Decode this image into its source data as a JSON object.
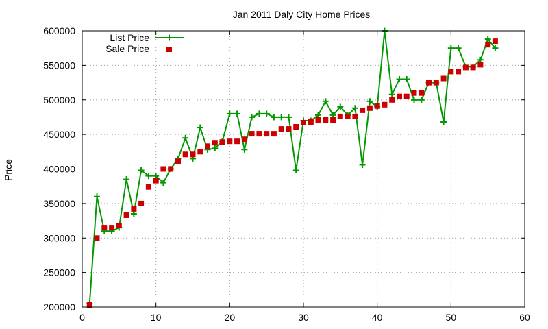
{
  "chart_data": {
    "type": "line",
    "title": "Jan 2011 Daly City Home Prices",
    "xlabel": "",
    "ylabel": "Price",
    "xlim": [
      0,
      60
    ],
    "ylim": [
      200000,
      600000
    ],
    "x_ticks": [
      0,
      10,
      20,
      30,
      40,
      50,
      60
    ],
    "y_ticks": [
      200000,
      250000,
      300000,
      350000,
      400000,
      450000,
      500000,
      550000,
      600000
    ],
    "grid": true,
    "legend_position": "top-left",
    "series": [
      {
        "name": "List Price",
        "style": "linespoints",
        "color": "#009900",
        "marker": "plus",
        "x": [
          1,
          2,
          3,
          4,
          5,
          6,
          7,
          8,
          9,
          10,
          11,
          12,
          13,
          14,
          15,
          16,
          17,
          18,
          19,
          20,
          21,
          22,
          23,
          24,
          25,
          26,
          27,
          28,
          29,
          30,
          31,
          32,
          33,
          34,
          35,
          36,
          37,
          38,
          39,
          40,
          41,
          42,
          43,
          44,
          45,
          46,
          47,
          48,
          49,
          50,
          51,
          52,
          53,
          54,
          55,
          56
        ],
        "values": [
          205000,
          360000,
          310000,
          310000,
          315000,
          385000,
          335000,
          398000,
          390000,
          390000,
          380000,
          400000,
          415000,
          445000,
          415000,
          460000,
          428000,
          430000,
          440000,
          480000,
          480000,
          428000,
          475000,
          480000,
          480000,
          475000,
          475000,
          475000,
          398000,
          470000,
          470000,
          478000,
          498000,
          478000,
          490000,
          478000,
          488000,
          406000,
          498000,
          490000,
          600000,
          508000,
          530000,
          530000,
          500000,
          500000,
          525000,
          525000,
          468000,
          575000,
          575000,
          548000,
          548000,
          558000,
          588000,
          575000
        ]
      },
      {
        "name": "Sale Price",
        "style": "points",
        "color": "#cc0000",
        "marker": "square",
        "x": [
          1,
          2,
          3,
          4,
          5,
          6,
          7,
          8,
          9,
          10,
          11,
          12,
          13,
          14,
          15,
          16,
          17,
          18,
          19,
          20,
          21,
          22,
          23,
          24,
          25,
          26,
          27,
          28,
          29,
          30,
          31,
          32,
          33,
          34,
          35,
          36,
          37,
          38,
          39,
          40,
          41,
          42,
          43,
          44,
          45,
          46,
          47,
          48,
          49,
          50,
          51,
          52,
          53,
          54,
          55,
          56
        ],
        "values": [
          203000,
          300000,
          315000,
          315000,
          318000,
          333000,
          342000,
          350000,
          374000,
          383000,
          400000,
          400000,
          411000,
          421000,
          421000,
          425000,
          433000,
          438000,
          439000,
          440000,
          440000,
          443000,
          451000,
          451000,
          451000,
          451000,
          458000,
          458000,
          461000,
          467000,
          468000,
          471000,
          471000,
          471000,
          476000,
          476000,
          476000,
          485000,
          488000,
          491000,
          493000,
          500000,
          505000,
          505000,
          510000,
          510000,
          525000,
          525000,
          531000,
          541000,
          541000,
          547000,
          547000,
          551000,
          580000,
          585000
        ]
      }
    ]
  }
}
